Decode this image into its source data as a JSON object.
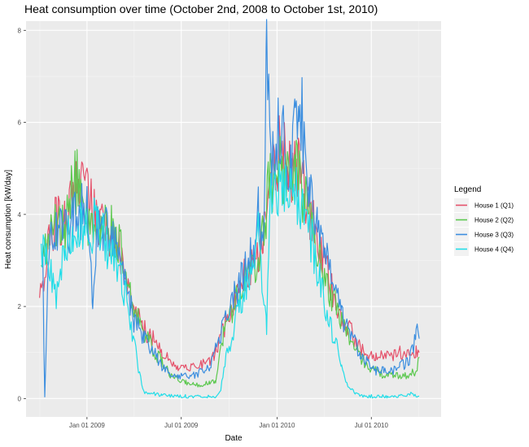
{
  "chart_data": {
    "type": "line",
    "title": "Heat consumption over time (October 2nd, 2008 to October 1st, 2010)",
    "xlabel": "Date",
    "ylabel": "Heat consumption [kW/day]",
    "xlim": [
      "2008-09-06",
      "2010-11-12"
    ],
    "ylim": [
      -0.4,
      8.2
    ],
    "x_ticks": [
      {
        "date": "2009-01-01",
        "label": "Jan 01 2009"
      },
      {
        "date": "2009-07-01",
        "label": "Jul 01 2009"
      },
      {
        "date": "2010-01-01",
        "label": "Jan 01 2010"
      },
      {
        "date": "2010-07-01",
        "label": "Jul 01 2010"
      }
    ],
    "y_ticks": [
      0,
      2,
      4,
      6,
      8
    ],
    "grid": true,
    "legend": {
      "title": "Legend",
      "position": "right"
    },
    "series": [
      {
        "name": "House 1 (Q1)",
        "color": "#E5526B",
        "points": [
          [
            "2008-10-02",
            2.1
          ],
          [
            "2008-10-20",
            3.6
          ],
          [
            "2008-11-05",
            4.0
          ],
          [
            "2008-11-20",
            3.9
          ],
          [
            "2008-12-05",
            4.3
          ],
          [
            "2008-12-20",
            4.7
          ],
          [
            "2009-01-05",
            4.3
          ],
          [
            "2009-01-20",
            3.8
          ],
          [
            "2009-02-05",
            3.6
          ],
          [
            "2009-02-20",
            3.5
          ],
          [
            "2009-03-05",
            3.3
          ],
          [
            "2009-03-15",
            2.5
          ],
          [
            "2009-04-01",
            1.9
          ],
          [
            "2009-04-20",
            1.5
          ],
          [
            "2009-05-10",
            1.3
          ],
          [
            "2009-05-25",
            1.0
          ],
          [
            "2009-06-10",
            0.8
          ],
          [
            "2009-06-25",
            0.7
          ],
          [
            "2009-07-10",
            0.7
          ],
          [
            "2009-07-25",
            0.7
          ],
          [
            "2009-08-10",
            0.75
          ],
          [
            "2009-08-25",
            0.8
          ],
          [
            "2009-09-05",
            1.0
          ],
          [
            "2009-09-20",
            1.5
          ],
          [
            "2009-10-05",
            2.0
          ],
          [
            "2009-10-20",
            2.4
          ],
          [
            "2009-11-05",
            2.8
          ],
          [
            "2009-11-20",
            2.9
          ],
          [
            "2009-12-05",
            3.6
          ],
          [
            "2009-12-15",
            4.7
          ],
          [
            "2009-12-25",
            5.0
          ],
          [
            "2010-01-05",
            5.4
          ],
          [
            "2010-01-15",
            5.2
          ],
          [
            "2010-01-25",
            4.9
          ],
          [
            "2010-02-05",
            5.0
          ],
          [
            "2010-02-15",
            4.8
          ],
          [
            "2010-02-25",
            4.4
          ],
          [
            "2010-03-10",
            3.8
          ],
          [
            "2010-03-25",
            3.2
          ],
          [
            "2010-04-10",
            2.6
          ],
          [
            "2010-04-25",
            2.0
          ],
          [
            "2010-05-10",
            1.7
          ],
          [
            "2010-05-25",
            1.4
          ],
          [
            "2010-06-10",
            1.1
          ],
          [
            "2010-06-25",
            0.9
          ],
          [
            "2010-07-10",
            0.9
          ],
          [
            "2010-07-25",
            0.9
          ],
          [
            "2010-08-10",
            0.9
          ],
          [
            "2010-08-25",
            1.0
          ],
          [
            "2010-09-10",
            1.0
          ],
          [
            "2010-09-25",
            1.0
          ],
          [
            "2010-10-01",
            1.0
          ]
        ]
      },
      {
        "name": "House 2 (Q2)",
        "color": "#5CC84F",
        "points": [
          [
            "2008-10-05",
            3.3
          ],
          [
            "2008-10-20",
            3.5
          ],
          [
            "2008-11-05",
            3.7
          ],
          [
            "2008-11-20",
            3.7
          ],
          [
            "2008-12-05",
            4.6
          ],
          [
            "2008-12-20",
            4.8
          ],
          [
            "2009-01-05",
            3.6
          ],
          [
            "2009-01-20",
            3.6
          ],
          [
            "2009-02-05",
            3.8
          ],
          [
            "2009-02-20",
            3.6
          ],
          [
            "2009-03-05",
            3.3
          ],
          [
            "2009-03-15",
            2.6
          ],
          [
            "2009-04-01",
            1.9
          ],
          [
            "2009-04-20",
            1.5
          ],
          [
            "2009-05-10",
            1.0
          ],
          [
            "2009-05-25",
            0.8
          ],
          [
            "2009-06-10",
            0.5
          ],
          [
            "2009-06-25",
            0.4
          ],
          [
            "2009-07-10",
            0.35
          ],
          [
            "2009-07-25",
            0.3
          ],
          [
            "2009-08-10",
            0.3
          ],
          [
            "2009-08-25",
            0.35
          ],
          [
            "2009-09-05",
            0.4
          ],
          [
            "2009-09-20",
            1.4
          ],
          [
            "2009-10-05",
            1.9
          ],
          [
            "2009-10-20",
            2.3
          ],
          [
            "2009-11-05",
            2.7
          ],
          [
            "2009-11-20",
            2.8
          ],
          [
            "2009-12-05",
            3.5
          ],
          [
            "2009-12-15",
            4.5
          ],
          [
            "2009-12-25",
            4.9
          ],
          [
            "2010-01-05",
            5.1
          ],
          [
            "2010-01-15",
            5.0
          ],
          [
            "2010-01-25",
            4.8
          ],
          [
            "2010-02-05",
            4.9
          ],
          [
            "2010-02-15",
            4.7
          ],
          [
            "2010-02-25",
            4.3
          ],
          [
            "2010-03-10",
            3.7
          ],
          [
            "2010-03-25",
            3.0
          ],
          [
            "2010-04-10",
            2.4
          ],
          [
            "2010-04-25",
            2.0
          ],
          [
            "2010-05-10",
            1.6
          ],
          [
            "2010-05-25",
            1.2
          ],
          [
            "2010-06-10",
            0.9
          ],
          [
            "2010-06-25",
            0.7
          ],
          [
            "2010-07-10",
            0.6
          ],
          [
            "2010-07-25",
            0.5
          ],
          [
            "2010-08-10",
            0.5
          ],
          [
            "2010-08-25",
            0.5
          ],
          [
            "2010-09-10",
            0.5
          ],
          [
            "2010-09-25",
            0.6
          ],
          [
            "2010-10-01",
            0.9
          ]
        ]
      },
      {
        "name": "House 3 (Q3)",
        "color": "#3C8EDF",
        "points": [
          [
            "2008-10-08",
            3.0
          ],
          [
            "2008-10-12",
            0.0
          ],
          [
            "2008-10-20",
            3.4
          ],
          [
            "2008-11-05",
            3.8
          ],
          [
            "2008-11-20",
            3.6
          ],
          [
            "2008-12-05",
            3.9
          ],
          [
            "2008-12-20",
            4.1
          ],
          [
            "2009-01-05",
            4.0
          ],
          [
            "2009-01-12",
            1.8
          ],
          [
            "2009-01-20",
            3.8
          ],
          [
            "2009-02-05",
            3.7
          ],
          [
            "2009-02-20",
            3.4
          ],
          [
            "2009-03-05",
            3.0
          ],
          [
            "2009-03-15",
            2.5
          ],
          [
            "2009-04-01",
            1.7
          ],
          [
            "2009-04-20",
            1.3
          ],
          [
            "2009-05-10",
            1.0
          ],
          [
            "2009-05-25",
            0.7
          ],
          [
            "2009-06-10",
            0.5
          ],
          [
            "2009-06-25",
            0.5
          ],
          [
            "2009-07-10",
            0.5
          ],
          [
            "2009-07-25",
            0.5
          ],
          [
            "2009-08-10",
            0.6
          ],
          [
            "2009-08-25",
            0.7
          ],
          [
            "2009-09-05",
            1.1
          ],
          [
            "2009-09-20",
            1.6
          ],
          [
            "2009-10-05",
            2.1
          ],
          [
            "2009-10-20",
            2.5
          ],
          [
            "2009-11-05",
            2.9
          ],
          [
            "2009-11-20",
            3.3
          ],
          [
            "2009-11-27",
            4.1
          ],
          [
            "2009-12-05",
            3.0
          ],
          [
            "2009-12-12",
            7.85
          ],
          [
            "2009-12-20",
            5.2
          ],
          [
            "2010-01-05",
            5.8
          ],
          [
            "2010-01-15",
            5.6
          ],
          [
            "2010-01-25",
            5.2
          ],
          [
            "2010-02-05",
            5.7
          ],
          [
            "2010-02-12",
            6.7
          ],
          [
            "2010-02-20",
            5.8
          ],
          [
            "2010-03-05",
            4.7
          ],
          [
            "2010-03-20",
            3.7
          ],
          [
            "2010-04-05",
            3.0
          ],
          [
            "2010-04-20",
            2.4
          ],
          [
            "2010-05-05",
            1.8
          ],
          [
            "2010-05-20",
            1.4
          ],
          [
            "2010-06-10",
            1.0
          ],
          [
            "2010-06-25",
            0.8
          ],
          [
            "2010-07-10",
            0.6
          ],
          [
            "2010-07-25",
            0.6
          ],
          [
            "2010-08-10",
            0.6
          ],
          [
            "2010-08-25",
            0.7
          ],
          [
            "2010-09-10",
            0.8
          ],
          [
            "2010-09-20",
            1.1
          ],
          [
            "2010-09-25",
            1.6
          ],
          [
            "2010-10-01",
            1.3
          ]
        ]
      },
      {
        "name": "House 4 (Q4)",
        "color": "#22DDE8",
        "points": [
          [
            "2008-10-05",
            3.1
          ],
          [
            "2008-10-20",
            3.0
          ],
          [
            "2008-11-05",
            2.2
          ],
          [
            "2008-11-20",
            3.5
          ],
          [
            "2008-12-05",
            3.4
          ],
          [
            "2008-12-20",
            3.7
          ],
          [
            "2009-01-05",
            3.6
          ],
          [
            "2009-01-20",
            3.9
          ],
          [
            "2009-02-05",
            3.4
          ],
          [
            "2009-02-20",
            3.1
          ],
          [
            "2009-03-05",
            2.8
          ],
          [
            "2009-03-15",
            2.3
          ],
          [
            "2009-04-01",
            1.3
          ],
          [
            "2009-04-10",
            0.6
          ],
          [
            "2009-04-20",
            0.15
          ],
          [
            "2009-05-10",
            0.1
          ],
          [
            "2009-05-25",
            0.08
          ],
          [
            "2009-06-10",
            0.05
          ],
          [
            "2009-06-25",
            0.05
          ],
          [
            "2009-07-10",
            0.05
          ],
          [
            "2009-07-25",
            0.05
          ],
          [
            "2009-08-10",
            0.05
          ],
          [
            "2009-08-25",
            0.05
          ],
          [
            "2009-09-05",
            0.05
          ],
          [
            "2009-09-15",
            0.2
          ],
          [
            "2009-09-25",
            0.9
          ],
          [
            "2009-10-05",
            1.3
          ],
          [
            "2009-10-20",
            2.0
          ],
          [
            "2009-11-05",
            2.5
          ],
          [
            "2009-11-20",
            2.8
          ],
          [
            "2009-11-27",
            3.8
          ],
          [
            "2009-12-05",
            2.3
          ],
          [
            "2009-12-12",
            1.6
          ],
          [
            "2009-12-20",
            4.4
          ],
          [
            "2010-01-05",
            4.6
          ],
          [
            "2010-01-15",
            4.4
          ],
          [
            "2010-01-25",
            4.3
          ],
          [
            "2010-02-05",
            4.5
          ],
          [
            "2010-02-20",
            4.1
          ],
          [
            "2010-03-05",
            3.6
          ],
          [
            "2010-03-20",
            2.8
          ],
          [
            "2010-04-05",
            2.0
          ],
          [
            "2010-04-20",
            1.3
          ],
          [
            "2010-05-05",
            0.8
          ],
          [
            "2010-05-15",
            0.3
          ],
          [
            "2010-06-01",
            0.1
          ],
          [
            "2010-06-15",
            0.05
          ],
          [
            "2010-07-01",
            0.05
          ],
          [
            "2010-07-15",
            0.05
          ],
          [
            "2010-08-01",
            0.05
          ],
          [
            "2010-08-15",
            0.05
          ],
          [
            "2010-09-01",
            0.05
          ],
          [
            "2010-09-15",
            0.1
          ],
          [
            "2010-10-01",
            0.05
          ]
        ]
      }
    ]
  }
}
